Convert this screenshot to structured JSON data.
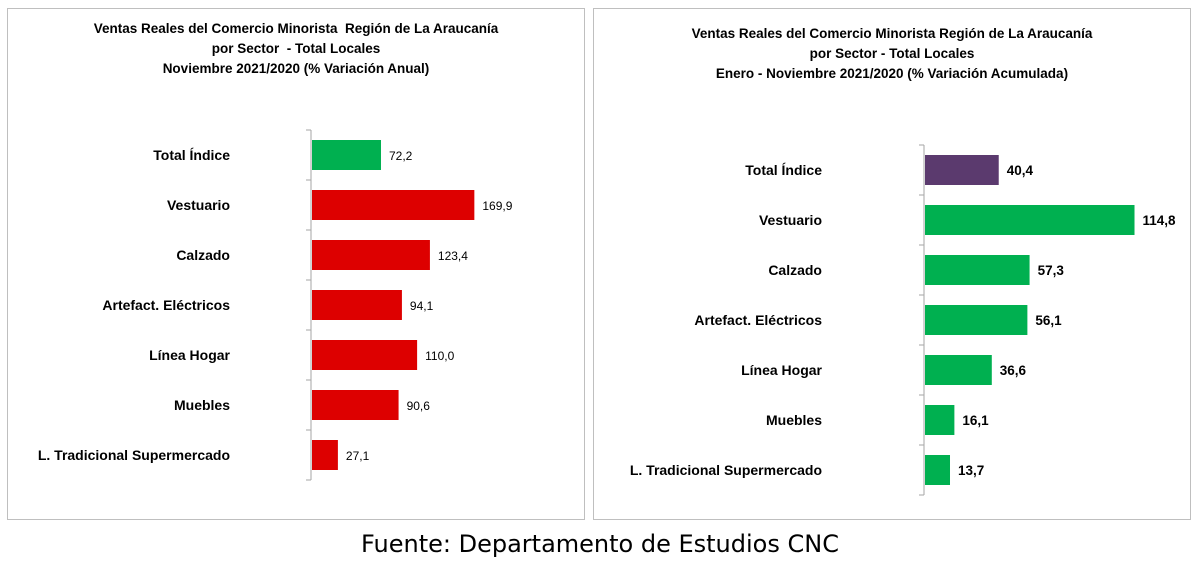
{
  "source": "Fuente: Departamento de Estudios CNC",
  "chart_data": [
    {
      "type": "bar",
      "orientation": "horizontal",
      "title_lines": [
        "Ventas Reales del Comercio Minorista  Región de La Araucanía",
        "por Sector  - Total Locales",
        "Noviembre 2021/2020 (% Variación Anual)"
      ],
      "categories": [
        "Total Índice",
        "Vestuario",
        "Calzado",
        "Artefact. Eléctricos",
        "Línea Hogar",
        "Muebles",
        "L. Tradicional Supermercado"
      ],
      "values": [
        72.2,
        169.9,
        123.4,
        94.1,
        110.0,
        90.6,
        27.1
      ],
      "value_labels": [
        "72,2",
        "169,9",
        "123,4",
        "94,1",
        "110,0",
        "90,6",
        "27,1"
      ],
      "bar_colors": [
        "#00b050",
        "#dd0000",
        "#dd0000",
        "#dd0000",
        "#dd0000",
        "#dd0000",
        "#dd0000"
      ],
      "xlim": [
        0,
        180
      ],
      "grid": false,
      "legend": "none"
    },
    {
      "type": "bar",
      "orientation": "horizontal",
      "title_lines": [
        "Ventas Reales del Comercio Minorista Región de La Araucanía",
        "por Sector - Total Locales",
        "Enero - Noviembre 2021/2020 (% Variación Acumulada)"
      ],
      "categories": [
        "Total Índice",
        "Vestuario",
        "Calzado",
        "Artefact. Eléctricos",
        "Línea Hogar",
        "Muebles",
        "L. Tradicional Supermercado"
      ],
      "values": [
        40.4,
        114.8,
        57.3,
        56.1,
        36.6,
        16.1,
        13.7
      ],
      "value_labels": [
        "40,4",
        "114,8",
        "57,3",
        "56,1",
        "36,6",
        "16,1",
        "13,7"
      ],
      "bar_colors": [
        "#5b3a6e",
        "#00b050",
        "#00b050",
        "#00b050",
        "#00b050",
        "#00b050",
        "#00b050"
      ],
      "xlim": [
        0,
        120
      ],
      "grid": false,
      "legend": "none"
    }
  ]
}
